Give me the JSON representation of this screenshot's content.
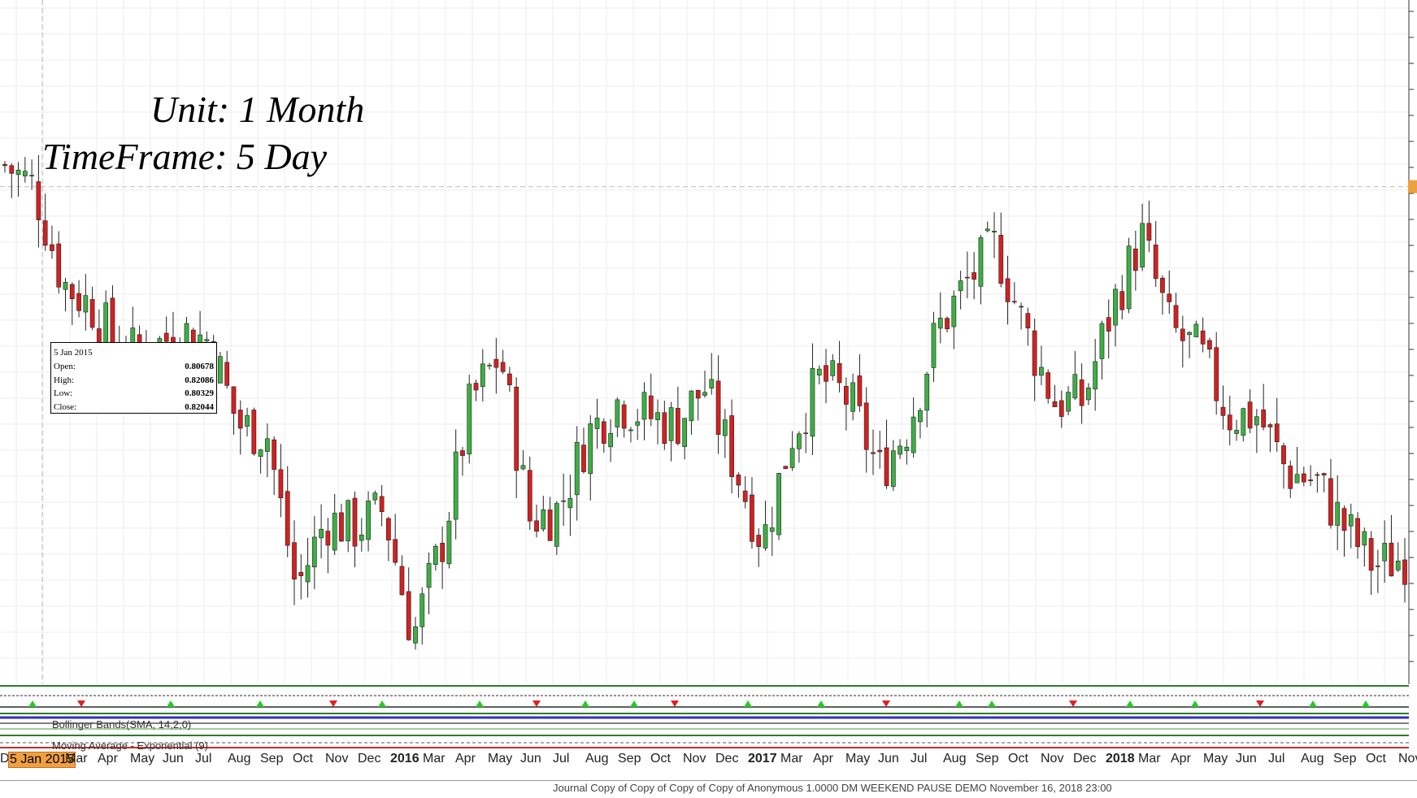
{
  "chart_data": {
    "type": "candlestick",
    "annotation_unit": "Unit: 1 Month",
    "annotation_timeframe": "TimeFrame: 5 Day",
    "tooltip": {
      "date": "5 Jan 2015",
      "open_label": "Open:",
      "open": "0.80678",
      "high_label": "High:",
      "high": "0.82086",
      "low_label": "Low:",
      "low": "0.80329",
      "close_label": "Close:",
      "close": "0.82044"
    },
    "x_tick_labels": [
      {
        "text": "De",
        "year": false
      },
      {
        "text": "5 Jan 2015",
        "year": false,
        "selected": true
      },
      {
        "text": "Mar",
        "year": false
      },
      {
        "text": "Apr",
        "year": false
      },
      {
        "text": "May",
        "year": false
      },
      {
        "text": "Jun",
        "year": false
      },
      {
        "text": "Jul",
        "year": false
      },
      {
        "text": "Aug",
        "year": false
      },
      {
        "text": "Sep",
        "year": false
      },
      {
        "text": "Oct",
        "year": false
      },
      {
        "text": "Nov",
        "year": false
      },
      {
        "text": "Dec",
        "year": false
      },
      {
        "text": "2016",
        "year": true
      },
      {
        "text": "Mar",
        "year": false
      },
      {
        "text": "Apr",
        "year": false
      },
      {
        "text": "May",
        "year": false
      },
      {
        "text": "Jun",
        "year": false
      },
      {
        "text": "Jul",
        "year": false
      },
      {
        "text": "Aug",
        "year": false
      },
      {
        "text": "Sep",
        "year": false
      },
      {
        "text": "Oct",
        "year": false
      },
      {
        "text": "Nov",
        "year": false
      },
      {
        "text": "Dec",
        "year": false
      },
      {
        "text": "2017",
        "year": true
      },
      {
        "text": "Mar",
        "year": false
      },
      {
        "text": "Apr",
        "year": false
      },
      {
        "text": "May",
        "year": false
      },
      {
        "text": "Jun",
        "year": false
      },
      {
        "text": "Jul",
        "year": false
      },
      {
        "text": "Aug",
        "year": false
      },
      {
        "text": "Sep",
        "year": false
      },
      {
        "text": "Oct",
        "year": false
      },
      {
        "text": "Nov",
        "year": false
      },
      {
        "text": "Dec",
        "year": false
      },
      {
        "text": "2018",
        "year": true
      },
      {
        "text": "Mar",
        "year": false
      },
      {
        "text": "Apr",
        "year": false
      },
      {
        "text": "May",
        "year": false
      },
      {
        "text": "Jun",
        "year": false
      },
      {
        "text": "Jul",
        "year": false
      },
      {
        "text": "Aug",
        "year": false
      },
      {
        "text": "Sep",
        "year": false
      },
      {
        "text": "Oct",
        "year": false
      },
      {
        "text": "Nov",
        "year": false
      }
    ],
    "price_anchors": [
      {
        "date": "Dec 2014",
        "close": 0.825
      },
      {
        "date": "5 Jan 2015",
        "close": 0.82044
      },
      {
        "date": "Jan 2015",
        "close": 0.8
      },
      {
        "date": "Feb 2015",
        "close": 0.795
      },
      {
        "date": "Mar 2015",
        "close": 0.785
      },
      {
        "date": "Apr 2015",
        "close": 0.786
      },
      {
        "date": "May 2015",
        "close": 0.79
      },
      {
        "date": "Jun 2015",
        "close": 0.788
      },
      {
        "date": "Jul 2015",
        "close": 0.77
      },
      {
        "date": "Aug 2015",
        "close": 0.768
      },
      {
        "date": "Sep 2015",
        "close": 0.735
      },
      {
        "date": "Oct 2015",
        "close": 0.75
      },
      {
        "date": "Nov 2015",
        "close": 0.748
      },
      {
        "date": "Dec 2015",
        "close": 0.752
      },
      {
        "date": "Jan 2016",
        "close": 0.725
      },
      {
        "date": "Feb 2016",
        "close": 0.745
      },
      {
        "date": "Mar 2016",
        "close": 0.775
      },
      {
        "date": "Apr 2016",
        "close": 0.785
      },
      {
        "date": "May 2016",
        "close": 0.75
      },
      {
        "date": "Jun 2016",
        "close": 0.752
      },
      {
        "date": "Jul 2016",
        "close": 0.768
      },
      {
        "date": "Aug 2016",
        "close": 0.775
      },
      {
        "date": "Sep 2016",
        "close": 0.772
      },
      {
        "date": "Oct 2016",
        "close": 0.77
      },
      {
        "date": "Nov 2016",
        "close": 0.778
      },
      {
        "date": "Dec 2016",
        "close": 0.762
      },
      {
        "date": "Jan 2017",
        "close": 0.745
      },
      {
        "date": "Feb 2017",
        "close": 0.768
      },
      {
        "date": "Mar 2017",
        "close": 0.78
      },
      {
        "date": "Apr 2017",
        "close": 0.775
      },
      {
        "date": "May 2017",
        "close": 0.76
      },
      {
        "date": "Jun 2017",
        "close": 0.77
      },
      {
        "date": "Jul 2017",
        "close": 0.79
      },
      {
        "date": "Aug 2017",
        "close": 0.8
      },
      {
        "date": "Sep 2017",
        "close": 0.808
      },
      {
        "date": "Oct 2017",
        "close": 0.79
      },
      {
        "date": "Nov 2017",
        "close": 0.775
      },
      {
        "date": "Dec 2017",
        "close": 0.775
      },
      {
        "date": "Jan 2018",
        "close": 0.795
      },
      {
        "date": "Feb 2018",
        "close": 0.81
      },
      {
        "date": "Mar 2018",
        "close": 0.79
      },
      {
        "date": "Apr 2018",
        "close": 0.785
      },
      {
        "date": "May 2018",
        "close": 0.772
      },
      {
        "date": "Jun 2018",
        "close": 0.772
      },
      {
        "date": "Jul 2018",
        "close": 0.76
      },
      {
        "date": "Aug 2018",
        "close": 0.758
      },
      {
        "date": "Sep 2018",
        "close": 0.748
      },
      {
        "date": "Oct 2018",
        "close": 0.74
      },
      {
        "date": "Nov 2018",
        "close": 0.742
      }
    ],
    "y_range": [
      0.715,
      0.86
    ],
    "up_color": "#3cb043",
    "down_color": "#d42020",
    "indicator_labels": [
      "Bollinger Bands(SMA, 14,2,0)",
      "Moving Average - Exponential (9)"
    ],
    "grid": true
  },
  "status_bar": {
    "text": "Journal   Copy of Copy of Copy of Copy of Anonymous   1.0000   DM   WEEKEND PAUSE   DEMO   November 16, 2018 23:00"
  }
}
